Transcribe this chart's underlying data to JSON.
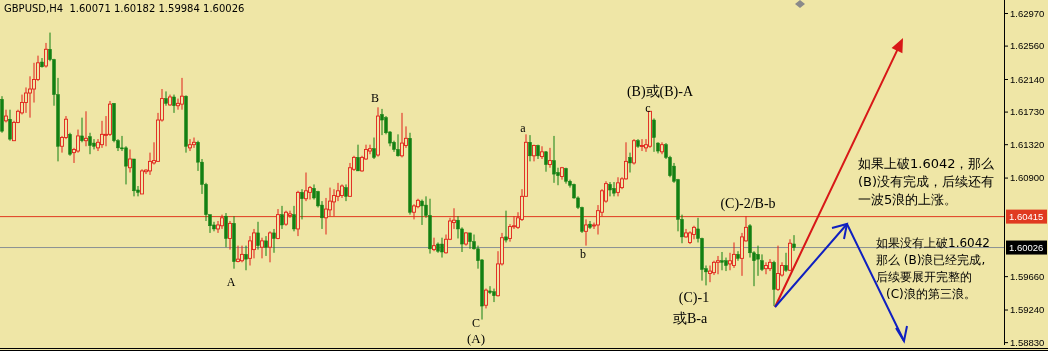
{
  "chart_data": {
    "type": "candlestick",
    "title": "GBPUSD,H4  1.60071 1.60182 1.59984 1.60026",
    "categories": [
      null,
      null,
      null,
      null,
      null,
      null,
      null,
      null,
      null,
      null,
      null,
      null,
      null,
      null,
      null,
      null,
      null,
      null,
      null,
      null,
      null,
      null,
      null,
      null,
      null,
      null,
      null,
      null,
      null,
      null,
      null,
      null,
      null,
      null,
      null,
      null,
      null,
      null,
      null,
      null,
      null,
      null,
      null,
      null,
      null,
      null,
      null,
      null,
      null,
      null,
      null,
      null,
      null,
      null,
      null,
      null,
      null,
      null,
      null,
      null,
      null,
      null,
      null,
      null,
      null,
      null,
      null,
      null,
      null,
      null,
      null,
      null,
      null,
      null,
      null,
      null,
      null,
      null,
      null,
      null,
      null,
      null,
      null,
      null,
      null,
      null,
      null,
      null,
      null,
      null,
      null,
      null,
      null,
      null,
      null,
      null,
      null,
      null,
      null,
      null,
      null,
      null,
      null,
      null,
      null,
      null,
      null,
      null,
      null,
      null,
      null,
      null,
      null,
      null,
      null,
      null,
      null,
      null,
      null,
      null,
      null,
      null,
      null,
      null,
      null,
      null,
      null,
      null,
      null,
      null,
      null,
      null,
      null,
      null,
      null,
      null,
      null,
      null,
      null,
      null,
      null,
      null,
      null,
      null,
      null,
      null,
      null,
      null,
      null,
      null,
      null,
      null,
      null,
      null,
      null,
      null,
      null,
      null,
      null,
      null,
      null,
      null,
      null,
      null,
      null,
      null,
      null,
      null,
      null,
      null,
      null,
      null,
      null,
      null,
      null,
      null,
      null,
      null,
      null,
      null,
      null,
      null,
      null,
      null,
      null,
      null,
      null,
      null,
      null,
      null,
      null,
      null,
      null,
      null,
      null,
      null,
      null,
      null,
      null,
      null,
      null,
      null,
      null,
      null,
      null,
      null,
      null,
      null,
      null,
      null,
      null,
      null,
      null,
      null,
      null,
      null,
      null,
      null,
      null,
      null,
      null,
      null,
      null,
      null,
      null,
      null,
      null,
      null,
      null,
      null,
      null,
      null,
      null,
      null,
      null,
      null,
      null,
      null,
      null,
      null,
      null,
      null,
      null,
      null,
      null,
      null,
      null,
      null,
      null,
      null,
      null
    ],
    "ohlc": [
      [
        1.6189,
        1.6193,
        1.6147,
        1.6149
      ],
      [
        1.6162,
        1.6176,
        1.616,
        1.6168
      ],
      [
        1.6164,
        1.6176,
        1.6137,
        1.6139
      ],
      [
        1.6137,
        1.6162,
        1.6137,
        1.616
      ],
      [
        1.616,
        1.6176,
        1.6159,
        1.6174
      ],
      [
        1.6172,
        1.6195,
        1.617,
        1.6185
      ],
      [
        1.6185,
        1.6204,
        1.6172,
        1.6197
      ],
      [
        1.6197,
        1.6218,
        1.6166,
        1.6202
      ],
      [
        1.6202,
        1.6235,
        1.6185,
        1.6214
      ],
      [
        1.6214,
        1.6244,
        1.6212,
        1.6235
      ],
      [
        1.6236,
        1.6241,
        1.6229,
        1.623
      ],
      [
        1.6231,
        1.626,
        1.6229,
        1.6252
      ],
      [
        1.6252,
        1.6273,
        1.6237,
        1.6239
      ],
      [
        1.6239,
        1.624,
        1.6181,
        1.6195
      ],
      [
        1.6195,
        1.6216,
        1.6111,
        1.613
      ],
      [
        1.613,
        1.6143,
        1.6122,
        1.6141
      ],
      [
        1.6141,
        1.6168,
        1.6139,
        1.6164
      ],
      [
        1.6145,
        1.6147,
        1.6118,
        1.612
      ],
      [
        1.6122,
        1.6128,
        1.6109,
        1.6126
      ],
      [
        1.6124,
        1.6151,
        1.6122,
        1.6143
      ],
      [
        1.6143,
        1.6166,
        1.6135,
        1.6137
      ],
      [
        1.6137,
        1.6174,
        1.613,
        1.614
      ],
      [
        1.6142,
        1.6147,
        1.612,
        1.6131
      ],
      [
        1.6134,
        1.6139,
        1.6126,
        1.613
      ],
      [
        1.6128,
        1.6139,
        1.6124,
        1.6135
      ],
      [
        1.6132,
        1.6162,
        1.6128,
        1.6145
      ],
      [
        1.6144,
        1.6168,
        1.613,
        1.6145
      ],
      [
        1.6145,
        1.6187,
        1.6143,
        1.6183
      ],
      [
        1.6184,
        1.6184,
        1.6135,
        1.6137
      ],
      [
        1.6137,
        1.6139,
        1.6124,
        1.6128
      ],
      [
        1.6128,
        1.6143,
        1.6124,
        1.6127
      ],
      [
        1.6128,
        1.613,
        1.6082,
        1.6105
      ],
      [
        1.6103,
        1.6126,
        1.6097,
        1.6114
      ],
      [
        1.6114,
        1.6114,
        1.6067,
        1.6074
      ],
      [
        1.6075,
        1.608,
        1.6067,
        1.6072
      ],
      [
        1.607,
        1.6101,
        1.607,
        1.6099
      ],
      [
        1.6098,
        1.6101,
        1.6095,
        1.61
      ],
      [
        1.6099,
        1.6122,
        1.6094,
        1.6111
      ],
      [
        1.6109,
        1.6135,
        1.6107,
        1.6112
      ],
      [
        1.6111,
        1.6172,
        1.6111,
        1.6163
      ],
      [
        1.6163,
        1.6202,
        1.6161,
        1.619
      ],
      [
        1.619,
        1.6199,
        1.6181,
        1.6184
      ],
      [
        1.6182,
        1.6195,
        1.6181,
        1.6192
      ],
      [
        1.6192,
        1.6195,
        1.6172,
        1.6181
      ],
      [
        1.6181,
        1.619,
        1.6176,
        1.6184
      ],
      [
        1.6183,
        1.6216,
        1.6176,
        1.6193
      ],
      [
        1.6193,
        1.6194,
        1.6122,
        1.613
      ],
      [
        1.6128,
        1.6139,
        1.6124,
        1.6132
      ],
      [
        1.6132,
        1.6141,
        1.6128,
        1.6135
      ],
      [
        1.6135,
        1.6137,
        1.6099,
        1.611
      ],
      [
        1.611,
        1.6114,
        1.607,
        1.6082
      ],
      [
        1.6082,
        1.6084,
        1.6036,
        1.6044
      ],
      [
        1.6044,
        1.6044,
        1.6021,
        1.603
      ],
      [
        1.6031,
        1.6035,
        1.6023,
        1.6026
      ],
      [
        1.6026,
        1.6036,
        1.6021,
        1.6031
      ],
      [
        1.603,
        1.6044,
        1.6026,
        1.604
      ],
      [
        1.6042,
        1.6046,
        1.6003,
        1.6014
      ],
      [
        1.6014,
        1.6036,
        1.6,
        1.6033
      ],
      [
        1.6033,
        1.6042,
        1.5976,
        1.5985
      ],
      [
        1.5985,
        1.6005,
        1.5984,
        1.5988
      ],
      [
        1.5986,
        1.6005,
        1.5984,
        1.5994
      ],
      [
        1.5994,
        1.6005,
        1.5974,
        1.5988
      ],
      [
        1.5989,
        1.6017,
        1.598,
        1.6011
      ],
      [
        1.6,
        1.6026,
        1.5989,
        1.6021
      ],
      [
        1.6021,
        1.6035,
        1.6,
        1.6005
      ],
      [
        1.6003,
        1.6015,
        1.5989,
        1.6011
      ],
      [
        1.6011,
        1.6017,
        1.5992,
        1.6003
      ],
      [
        1.6003,
        1.6023,
        1.5984,
        1.6021
      ],
      [
        1.6021,
        1.6026,
        1.5996,
        1.6014
      ],
      [
        1.6014,
        1.6051,
        1.6013,
        1.6044
      ],
      [
        1.6044,
        1.6055,
        1.6026,
        1.6031
      ],
      [
        1.6032,
        1.6049,
        1.603,
        1.6047
      ],
      [
        1.6043,
        1.6049,
        1.604,
        1.6045
      ],
      [
        1.6044,
        1.6055,
        1.6023,
        1.6026
      ],
      [
        1.6026,
        1.6074,
        1.6017,
        1.6072
      ],
      [
        1.6072,
        1.6076,
        1.6038,
        1.6064
      ],
      [
        1.6064,
        1.6097,
        1.6061,
        1.6074
      ],
      [
        1.6072,
        1.608,
        1.6063,
        1.6078
      ],
      [
        1.6077,
        1.6082,
        1.6063,
        1.6065
      ],
      [
        1.6073,
        1.6074,
        1.6053,
        1.6055
      ],
      [
        1.6056,
        1.6061,
        1.6026,
        1.604
      ],
      [
        1.604,
        1.6065,
        1.6019,
        1.6051
      ],
      [
        1.605,
        1.6078,
        1.6042,
        1.6061
      ],
      [
        1.606,
        1.6076,
        1.6042,
        1.6068
      ],
      [
        1.6067,
        1.6084,
        1.6061,
        1.6074
      ],
      [
        1.6068,
        1.6082,
        1.6065,
        1.608
      ],
      [
        1.6078,
        1.6082,
        1.6061,
        1.6067
      ],
      [
        1.6067,
        1.6109,
        1.6067,
        1.6103
      ],
      [
        1.6101,
        1.6118,
        1.6099,
        1.6116
      ],
      [
        1.6116,
        1.6132,
        1.6099,
        1.6099
      ],
      [
        1.6099,
        1.6118,
        1.6098,
        1.6116
      ],
      [
        1.6114,
        1.6132,
        1.6113,
        1.6126
      ],
      [
        1.6124,
        1.6132,
        1.612,
        1.6127
      ],
      [
        1.6127,
        1.6141,
        1.6114,
        1.6116
      ],
      [
        1.6119,
        1.6179,
        1.6117,
        1.6168
      ],
      [
        1.617,
        1.6177,
        1.6144,
        1.6163
      ],
      [
        1.6166,
        1.6168,
        1.6145,
        1.6147
      ],
      [
        1.6148,
        1.6149,
        1.613,
        1.6134
      ],
      [
        1.6135,
        1.6137,
        1.6123,
        1.6126
      ],
      [
        1.6126,
        1.6145,
        1.6117,
        1.6118
      ],
      [
        1.6118,
        1.6172,
        1.6116,
        1.6134
      ],
      [
        1.6131,
        1.6155,
        1.6128,
        1.614
      ],
      [
        1.614,
        1.6147,
        1.6044,
        1.6047
      ],
      [
        1.6047,
        1.6057,
        1.6038,
        1.6055
      ],
      [
        1.6054,
        1.6064,
        1.6052,
        1.6062
      ],
      [
        1.6061,
        1.6063,
        1.6031,
        1.6055
      ],
      [
        1.6056,
        1.6067,
        1.604,
        1.6043
      ],
      [
        1.6043,
        1.6064,
        1.5995,
        1.6001
      ],
      [
        1.6,
        1.6015,
        1.5998,
        1.6005
      ],
      [
        1.6007,
        1.6009,
        1.5996,
        1.5998
      ],
      [
        1.6007,
        1.6015,
        1.599,
        1.5997
      ],
      [
        1.5996,
        1.6019,
        1.5995,
        1.6013
      ],
      [
        1.6013,
        1.604,
        1.6012,
        1.6036
      ],
      [
        1.6034,
        1.6052,
        1.6026,
        1.6037
      ],
      [
        1.6037,
        1.6042,
        1.6014,
        1.6026
      ],
      [
        1.6026,
        1.6028,
        1.5997,
        1.6007
      ],
      [
        1.6007,
        1.6022,
        1.6005,
        1.6021
      ],
      [
        1.6021,
        1.6021,
        1.6001,
        1.601
      ],
      [
        1.601,
        1.6019,
        1.6,
        1.6001
      ],
      [
        1.6001,
        1.6005,
        1.5976,
        1.5986
      ],
      [
        1.5987,
        1.5988,
        1.5912,
        1.5929
      ],
      [
        1.593,
        1.5951,
        1.5926,
        1.5949
      ],
      [
        1.5948,
        1.5954,
        1.5944,
        1.5946
      ],
      [
        1.5947,
        1.5951,
        1.5934,
        1.5942
      ],
      [
        1.5942,
        1.5998,
        1.5941,
        1.5982
      ],
      [
        1.5982,
        1.6021,
        1.598,
        1.6015
      ],
      [
        1.6016,
        1.6049,
        1.6009,
        1.6012
      ],
      [
        1.6014,
        1.6032,
        1.601,
        1.6029
      ],
      [
        1.6029,
        1.6042,
        1.6026,
        1.603
      ],
      [
        1.6028,
        1.6047,
        1.6026,
        1.604
      ],
      [
        1.6038,
        1.6076,
        1.6036,
        1.6067
      ],
      [
        1.6067,
        1.6145,
        1.6067,
        1.6135
      ],
      [
        1.6135,
        1.6144,
        1.6111,
        1.6118
      ],
      [
        1.6118,
        1.6132,
        1.6111,
        1.6131
      ],
      [
        1.6131,
        1.6132,
        1.6114,
        1.6118
      ],
      [
        1.6117,
        1.613,
        1.6114,
        1.6123
      ],
      [
        1.6123,
        1.6124,
        1.6098,
        1.6107
      ],
      [
        1.6107,
        1.6128,
        1.6103,
        1.6112
      ],
      [
        1.6112,
        1.6143,
        1.6084,
        1.6095
      ],
      [
        1.6097,
        1.6103,
        1.6081,
        1.6093
      ],
      [
        1.6092,
        1.6104,
        1.6088,
        1.6103
      ],
      [
        1.6102,
        1.6103,
        1.6083,
        1.6086
      ],
      [
        1.6086,
        1.6088,
        1.6078,
        1.6081
      ],
      [
        1.6082,
        1.6083,
        1.6064,
        1.6065
      ],
      [
        1.6065,
        1.6067,
        1.6051,
        1.6053
      ],
      [
        1.6053,
        1.6054,
        1.6021,
        1.6023
      ],
      [
        1.6023,
        1.6038,
        1.6005,
        1.6031
      ],
      [
        1.6032,
        1.6036,
        1.6026,
        1.6028
      ],
      [
        1.603,
        1.6034,
        1.6026,
        1.6031
      ],
      [
        1.6031,
        1.6056,
        1.6019,
        1.6049
      ],
      [
        1.6047,
        1.6076,
        1.6042,
        1.6074
      ],
      [
        1.6061,
        1.6086,
        1.6059,
        1.6083
      ],
      [
        1.6082,
        1.6085,
        1.6067,
        1.6075
      ],
      [
        1.6077,
        1.6085,
        1.6067,
        1.6071
      ],
      [
        1.6072,
        1.6091,
        1.6067,
        1.6084
      ],
      [
        1.6078,
        1.6091,
        1.6076,
        1.6089
      ],
      [
        1.6089,
        1.6135,
        1.6088,
        1.6111
      ],
      [
        1.6116,
        1.6122,
        1.6097,
        1.6109
      ],
      [
        1.6109,
        1.6139,
        1.6107,
        1.6137
      ],
      [
        1.6137,
        1.6139,
        1.6128,
        1.613
      ],
      [
        1.613,
        1.6139,
        1.6124,
        1.6131
      ],
      [
        1.6128,
        1.6139,
        1.6123,
        1.6132
      ],
      [
        1.613,
        1.6174,
        1.6128,
        1.6174
      ],
      [
        1.6163,
        1.6165,
        1.6123,
        1.6141
      ],
      [
        1.6134,
        1.6135,
        1.6121,
        1.6124
      ],
      [
        1.6123,
        1.6135,
        1.612,
        1.6132
      ],
      [
        1.6132,
        1.6134,
        1.6114,
        1.6116
      ],
      [
        1.6116,
        1.6118,
        1.6091,
        1.6093
      ],
      [
        1.6105,
        1.6109,
        1.6084,
        1.6086
      ],
      [
        1.6088,
        1.6089,
        1.6023,
        1.6038
      ],
      [
        1.6038,
        1.6044,
        1.6008,
        1.6016
      ],
      [
        1.6016,
        1.6026,
        1.6015,
        1.6021
      ],
      [
        1.6009,
        1.6023,
        1.6007,
        1.6021
      ],
      [
        1.6019,
        1.603,
        1.6013,
        1.6028
      ],
      [
        1.6026,
        1.604,
        1.6009,
        1.6014
      ],
      [
        1.6014,
        1.6015,
        1.5961,
        1.5975
      ],
      [
        1.5976,
        1.598,
        1.5955,
        1.5972
      ],
      [
        1.597,
        1.598,
        1.5959,
        1.5973
      ],
      [
        1.5971,
        1.5986,
        1.5968,
        1.5984
      ],
      [
        1.5984,
        1.5992,
        1.5969,
        1.5986
      ],
      [
        1.5986,
        1.5997,
        1.5974,
        1.5984
      ],
      [
        1.5986,
        1.599,
        1.5973,
        1.598
      ],
      [
        1.5982,
        1.5996,
        1.5974,
        1.5986
      ],
      [
        1.598,
        1.6009,
        1.5977,
        1.5994
      ],
      [
        1.5994,
        1.5998,
        1.5986,
        1.5989
      ],
      [
        1.5989,
        1.6021,
        1.5967,
        1.6016
      ],
      [
        1.6011,
        1.6042,
        1.601,
        1.6028
      ],
      [
        1.603,
        1.6032,
        1.599,
        1.5996
      ],
      [
        1.5996,
        1.5998,
        1.5954,
        1.5986
      ],
      [
        1.5994,
        1.6005,
        1.5967,
        1.5988
      ],
      [
        1.5986,
        1.5994,
        1.5973,
        1.5975
      ],
      [
        1.5976,
        1.5984,
        1.5969,
        1.598
      ],
      [
        1.5976,
        1.5988,
        1.5973,
        1.5984
      ],
      [
        1.5984,
        1.5986,
        1.5929,
        1.595
      ],
      [
        1.595,
        1.6005,
        1.5948,
        1.597
      ],
      [
        1.5968,
        1.5984,
        1.5966,
        1.598
      ],
      [
        1.598,
        1.5996,
        1.5972,
        1.5974
      ],
      [
        1.5974,
        1.6013,
        1.5973,
        1.6008
      ],
      [
        1.60071,
        1.60182,
        1.59984,
        1.60026
      ],
      null,
      null,
      null,
      null,
      null,
      null,
      null,
      null,
      null,
      null,
      null,
      null,
      null,
      null,
      null,
      null,
      null,
      null,
      null,
      null,
      null,
      null,
      null,
      null,
      null,
      null,
      null,
      null,
      null,
      null,
      null,
      null,
      null,
      null,
      null,
      null,
      null,
      null,
      null,
      null,
      null,
      null,
      null,
      null,
      null,
      null,
      null,
      null,
      null,
      null,
      null,
      null
    ],
    "ylim": [
      1.588,
      1.6314
    ],
    "yticks": [
      {
        "value": 1.6297,
        "label": "1.62970"
      },
      {
        "value": 1.6256,
        "label": "1.62560"
      },
      {
        "value": 1.6214,
        "label": "1.62140"
      },
      {
        "value": 1.6173,
        "label": "1.61730"
      },
      {
        "value": 1.6132,
        "label": "1.61320"
      },
      {
        "value": 1.609,
        "label": "1.60900"
      },
      {
        "value": 1.5966,
        "label": "1.59660"
      },
      {
        "value": 1.5924,
        "label": "1.59240"
      },
      {
        "value": 1.5883,
        "label": "1.58830"
      }
    ],
    "tick_labels": "y",
    "ref_lines": [
      {
        "axis": "y",
        "value": 1.60415,
        "label": "1.60415",
        "color": "#e03a20"
      },
      {
        "axis": "y",
        "value": 1.60026,
        "label": "1.60026",
        "color": "#8a9094"
      }
    ],
    "annotations": [
      "A",
      "B",
      "C",
      "(A)",
      "a",
      "b",
      "c",
      "(B)或(B)-A",
      "(C)-2/B-b",
      "(C)-1",
      "或B-a",
      "如果上破1.6042，那么(B)没有完成，后续还有一波5浪的上涨。",
      "如果没有上破1.6042那么 (B)浪已经完成,后续要展开完整的(C)浪的第三浪。"
    ]
  }
}
